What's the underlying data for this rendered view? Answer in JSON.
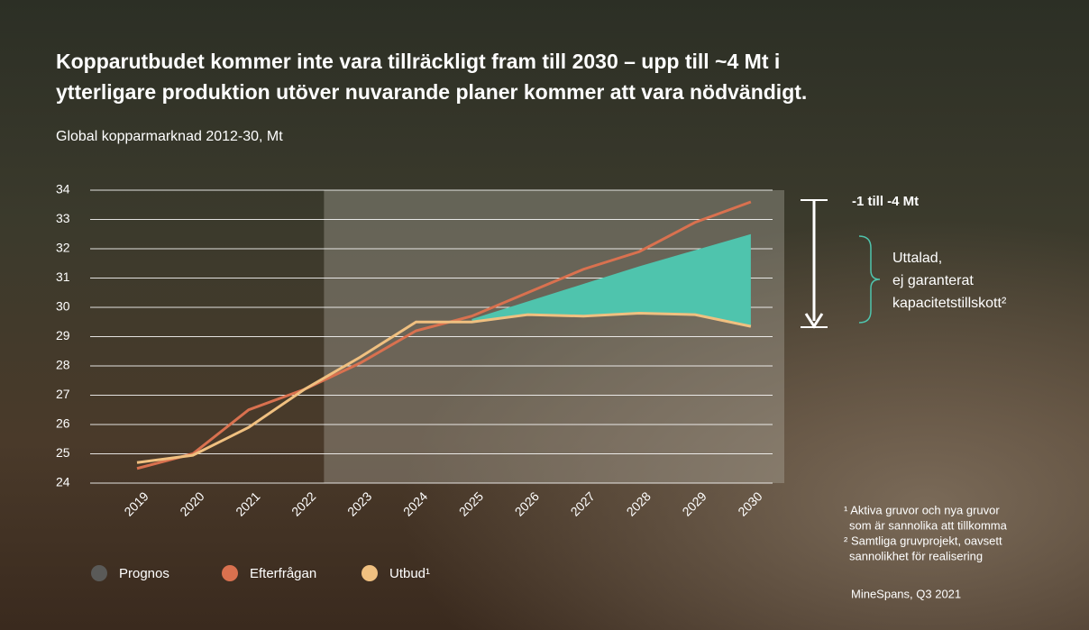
{
  "chart_data": {
    "type": "line",
    "title": [
      "Kopparutbudet kommer inte vara tillräckligt fram till 2030 – upp till ~4 Mt i",
      "ytterligare produktion utöver nuvarande planer kommer att vara nödvändigt."
    ],
    "subtitle": "Global kopparmarknad 2012-30, Mt",
    "categories": [
      "2019",
      "2020",
      "2021",
      "2022",
      "2023",
      "2024",
      "2025",
      "2026",
      "2027",
      "2028",
      "2029",
      "2030"
    ],
    "series": [
      {
        "name": "Efterfrågan",
        "color": "#d9714f",
        "values": [
          24.5,
          25.0,
          26.5,
          27.2,
          28.1,
          29.2,
          29.7,
          30.5,
          31.3,
          31.9,
          32.9,
          33.6
        ]
      },
      {
        "name": "Utbud¹",
        "color": "#f0c080",
        "values": [
          24.7,
          24.95,
          25.9,
          27.2,
          28.3,
          29.5,
          29.5,
          29.75,
          29.7,
          29.8,
          29.75,
          29.35
        ]
      }
    ],
    "gap_area": {
      "color": "#4fc4ad",
      "upper": [
        null,
        null,
        null,
        null,
        null,
        null,
        29.6,
        30.2,
        30.8,
        31.4,
        31.95,
        32.5
      ]
    },
    "forecast": {
      "name": "Prognos",
      "color": "#5a5a58",
      "start": 3.35
    },
    "ylim": [
      24,
      34
    ],
    "yticks": [
      24,
      25,
      26,
      27,
      28,
      29,
      30,
      31,
      32,
      33,
      34
    ],
    "grid": true,
    "annotations": {
      "gap": "-1 till -4 Mt",
      "capacity": [
        "Uttalad,",
        "ej garanterat",
        "kapacitetstillskott²"
      ]
    },
    "footnotes": [
      "¹ Aktiva gruvor och nya gruvor",
      "som är sannolika att tillkomma",
      "² Samtliga gruvprojekt, oavsett",
      "sannolikhet för realisering"
    ],
    "source": "MineSpans, Q3 2021"
  }
}
